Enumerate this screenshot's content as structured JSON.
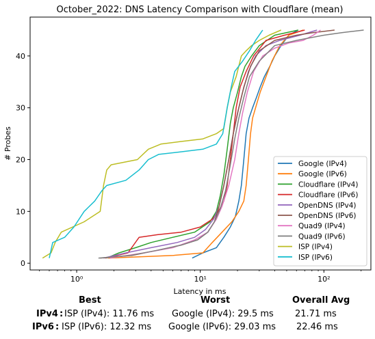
{
  "chart_data": {
    "type": "line",
    "title": "October_2022: DNS Latency Comparison with Cloudflare (mean)",
    "xlabel": "Latency in ms",
    "ylabel": "# Probes",
    "xscale": "log",
    "xlim": [
      0.42,
      240
    ],
    "ylim": [
      -1.3,
      47.5
    ],
    "xticks": [
      1,
      10,
      100
    ],
    "xtick_labels": [
      "10⁰",
      "10¹",
      "10²"
    ],
    "yticks": [
      0,
      10,
      20,
      30,
      40
    ],
    "grid": false,
    "legend_position": "bottom-right",
    "series": [
      {
        "name": "Google (IPv4)",
        "color": "#1f77b4",
        "points": [
          [
            8.6,
            1
          ],
          [
            10.5,
            2
          ],
          [
            13.5,
            3
          ],
          [
            15.5,
            5
          ],
          [
            17.5,
            7
          ],
          [
            19.2,
            9
          ],
          [
            20.5,
            12
          ],
          [
            21.5,
            15
          ],
          [
            22.5,
            20
          ],
          [
            23.5,
            25
          ],
          [
            24.8,
            28
          ],
          [
            26.5,
            30
          ],
          [
            28.5,
            32
          ],
          [
            30.5,
            34
          ],
          [
            33,
            36
          ],
          [
            36.5,
            38
          ],
          [
            40,
            40
          ],
          [
            45,
            42
          ],
          [
            52,
            44
          ],
          [
            62,
            45
          ]
        ]
      },
      {
        "name": "Google (IPv6)",
        "color": "#ff7f0e",
        "points": [
          [
            1.8,
            1
          ],
          [
            6,
            1.5
          ],
          [
            10.5,
            2
          ],
          [
            12.5,
            4
          ],
          [
            15,
            6
          ],
          [
            18,
            8
          ],
          [
            20.5,
            10
          ],
          [
            22.5,
            12
          ],
          [
            23.5,
            15
          ],
          [
            24.5,
            20
          ],
          [
            25.5,
            25
          ],
          [
            26.5,
            28
          ],
          [
            28,
            30
          ],
          [
            30.5,
            33
          ],
          [
            34,
            36
          ],
          [
            38,
            39
          ],
          [
            44,
            42
          ],
          [
            52,
            44
          ],
          [
            68,
            45
          ]
        ]
      },
      {
        "name": "Cloudflare (IPv4)",
        "color": "#2ca02c",
        "points": [
          [
            1.75,
            1
          ],
          [
            2.2,
            2
          ],
          [
            3,
            3
          ],
          [
            4,
            4
          ],
          [
            6,
            5
          ],
          [
            9,
            6
          ],
          [
            12,
            8
          ],
          [
            13.5,
            10
          ],
          [
            14.5,
            13
          ],
          [
            15.5,
            17
          ],
          [
            16.5,
            22
          ],
          [
            17.5,
            27
          ],
          [
            18.5,
            30
          ],
          [
            20,
            33
          ],
          [
            21.5,
            36
          ],
          [
            23,
            38
          ],
          [
            26,
            40
          ],
          [
            30,
            42
          ],
          [
            40,
            44
          ],
          [
            62,
            45
          ]
        ]
      },
      {
        "name": "Cloudflare (IPv6)",
        "color": "#d62728",
        "points": [
          [
            1.7,
            1
          ],
          [
            2.6,
            2
          ],
          [
            3.2,
            5
          ],
          [
            4.5,
            5.5
          ],
          [
            7,
            6
          ],
          [
            10,
            7
          ],
          [
            12.5,
            8.5
          ],
          [
            14,
            10
          ],
          [
            15.5,
            12
          ],
          [
            16.5,
            15
          ],
          [
            17.5,
            20
          ],
          [
            18.5,
            25
          ],
          [
            19.5,
            30
          ],
          [
            21,
            34
          ],
          [
            23.5,
            37
          ],
          [
            27,
            40
          ],
          [
            34,
            43
          ],
          [
            48,
            44
          ],
          [
            70,
            45
          ]
        ]
      },
      {
        "name": "OpenDNS (IPv4)",
        "color": "#9467bd",
        "points": [
          [
            1.65,
            1
          ],
          [
            2.5,
            2
          ],
          [
            4,
            3
          ],
          [
            6.5,
            4
          ],
          [
            9,
            5
          ],
          [
            11,
            6.5
          ],
          [
            12.8,
            8.5
          ],
          [
            14.2,
            11
          ],
          [
            15.5,
            15
          ],
          [
            17,
            20
          ],
          [
            18.5,
            25
          ],
          [
            20,
            29
          ],
          [
            22,
            33
          ],
          [
            24.5,
            37
          ],
          [
            28,
            40
          ],
          [
            34,
            42
          ],
          [
            44,
            43
          ],
          [
            64,
            44
          ],
          [
            88,
            45
          ]
        ]
      },
      {
        "name": "OpenDNS (IPv6)",
        "color": "#8c564b",
        "points": [
          [
            1.55,
            1
          ],
          [
            2.8,
            1.5
          ],
          [
            4.5,
            2.5
          ],
          [
            7,
            3.5
          ],
          [
            9.5,
            4.5
          ],
          [
            11.5,
            6
          ],
          [
            13,
            8
          ],
          [
            14.2,
            11
          ],
          [
            15.5,
            15
          ],
          [
            17,
            20
          ],
          [
            18.5,
            25
          ],
          [
            20.5,
            30
          ],
          [
            22.5,
            34
          ],
          [
            25.5,
            38
          ],
          [
            30,
            41
          ],
          [
            40,
            43
          ],
          [
            60,
            44
          ],
          [
            82,
            44.5
          ],
          [
            122,
            45
          ]
        ]
      },
      {
        "name": "Quad9 (IPv4)",
        "color": "#e377c2",
        "points": [
          [
            1.85,
            1
          ],
          [
            3.5,
            2
          ],
          [
            6,
            3
          ],
          [
            9,
            4.5
          ],
          [
            11.5,
            6
          ],
          [
            13.5,
            8.5
          ],
          [
            15,
            11
          ],
          [
            17,
            15
          ],
          [
            19,
            20
          ],
          [
            20.5,
            25
          ],
          [
            22,
            29
          ],
          [
            24,
            33
          ],
          [
            27,
            37
          ],
          [
            32,
            40
          ],
          [
            40,
            41.5
          ],
          [
            52,
            42.5
          ],
          [
            68,
            43
          ],
          [
            82,
            44
          ],
          [
            94,
            45
          ]
        ]
      },
      {
        "name": "Quad9 (IPv6)",
        "color": "#7f7f7f",
        "points": [
          [
            1.5,
            1
          ],
          [
            2.7,
            1.5
          ],
          [
            4.5,
            2.5
          ],
          [
            7,
            3.5
          ],
          [
            9.5,
            4.5
          ],
          [
            11.5,
            6
          ],
          [
            13,
            8
          ],
          [
            14.5,
            10.5
          ],
          [
            16,
            14
          ],
          [
            17.5,
            19
          ],
          [
            19,
            24
          ],
          [
            20.5,
            28
          ],
          [
            22.5,
            32
          ],
          [
            25,
            36
          ],
          [
            30,
            39
          ],
          [
            40,
            42
          ],
          [
            60,
            43
          ],
          [
            100,
            44
          ],
          [
            140,
            44.5
          ],
          [
            210,
            45
          ]
        ]
      },
      {
        "name": "ISP (IPv4)",
        "color": "#bcbd22",
        "points": [
          [
            0.53,
            1
          ],
          [
            0.62,
            2
          ],
          [
            0.67,
            4
          ],
          [
            0.75,
            6
          ],
          [
            1.15,
            8
          ],
          [
            1.55,
            10
          ],
          [
            1.65,
            15
          ],
          [
            1.75,
            18
          ],
          [
            1.9,
            19
          ],
          [
            3.1,
            20
          ],
          [
            3.8,
            22
          ],
          [
            4.8,
            23
          ],
          [
            7,
            23.5
          ],
          [
            10.5,
            24
          ],
          [
            13.5,
            25
          ],
          [
            15.5,
            26
          ],
          [
            16.5,
            30
          ],
          [
            17.5,
            33
          ],
          [
            19.5,
            36
          ],
          [
            21.5,
            40
          ],
          [
            23.5,
            41
          ],
          [
            26,
            42
          ],
          [
            30,
            43
          ],
          [
            36,
            44
          ],
          [
            45,
            45
          ]
        ]
      },
      {
        "name": "ISP (IPv6)",
        "color": "#17becf",
        "points": [
          [
            0.6,
            1
          ],
          [
            0.64,
            4
          ],
          [
            0.8,
            5
          ],
          [
            0.95,
            7
          ],
          [
            1.15,
            10
          ],
          [
            1.4,
            12
          ],
          [
            1.6,
            14
          ],
          [
            1.75,
            15
          ],
          [
            2.5,
            16
          ],
          [
            3.2,
            18
          ],
          [
            3.8,
            20
          ],
          [
            4.6,
            21
          ],
          [
            7,
            21.5
          ],
          [
            10.5,
            22
          ],
          [
            13.5,
            23
          ],
          [
            15.2,
            25
          ],
          [
            16.5,
            30
          ],
          [
            17.8,
            34
          ],
          [
            19,
            37
          ],
          [
            22,
            39
          ],
          [
            25,
            41
          ],
          [
            28,
            43
          ],
          [
            32,
            45
          ]
        ]
      }
    ]
  },
  "summary": {
    "headers": {
      "best": "Best",
      "worst": "Worst",
      "overall": "Overall Avg"
    },
    "rows": [
      {
        "label": "IPv4",
        "sep": ":",
        "best": "ISP (IPv4): 11.76 ms",
        "worst": "Google (IPv4): 29.5 ms",
        "overall": "21.71 ms"
      },
      {
        "label": "IPv6",
        "sep": ":",
        "best": "ISP (IPv6): 12.32 ms",
        "worst": "Google (IPv6): 29.03 ms",
        "overall": "22.46 ms"
      }
    ]
  }
}
